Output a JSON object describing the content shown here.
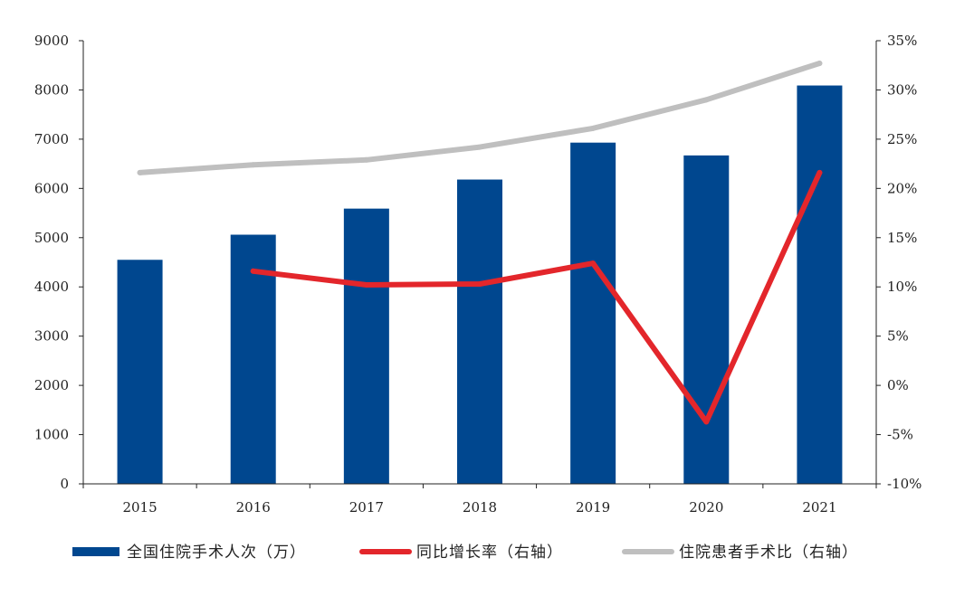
{
  "chart_data": {
    "type": "bar",
    "title": "",
    "xlabel": "",
    "ylabel": "",
    "y2label": "",
    "categories": [
      "2015",
      "2016",
      "2017",
      "2018",
      "2019",
      "2020",
      "2021"
    ],
    "ylim": [
      0,
      9000
    ],
    "y_ticks": [
      "0",
      "1000",
      "2000",
      "3000",
      "4000",
      "5000",
      "6000",
      "7000",
      "8000",
      "9000"
    ],
    "y2lim": [
      -10,
      35
    ],
    "y2_ticks": [
      "-10%",
      "-5%",
      "0%",
      "5%",
      "10%",
      "15%",
      "20%",
      "25%",
      "30%",
      "35%"
    ],
    "grid": false,
    "legend_position": "bottom",
    "series": [
      {
        "name": "全国住院手术人次（万）",
        "type": "bar",
        "axis": "left",
        "color": "#00478F",
        "values": [
          4550,
          5060,
          5590,
          6180,
          6930,
          6670,
          8090
        ]
      },
      {
        "name": "同比增长率（右轴）",
        "type": "line",
        "axis": "right",
        "color": "#E3262B",
        "values": [
          null,
          11.6,
          10.2,
          10.3,
          12.4,
          -3.7,
          21.6
        ]
      },
      {
        "name": "住院患者手术比（右轴）",
        "type": "line",
        "axis": "right",
        "color": "#BFBFBF",
        "values": [
          21.6,
          22.4,
          22.9,
          24.2,
          26.1,
          29.0,
          32.7
        ]
      }
    ]
  }
}
